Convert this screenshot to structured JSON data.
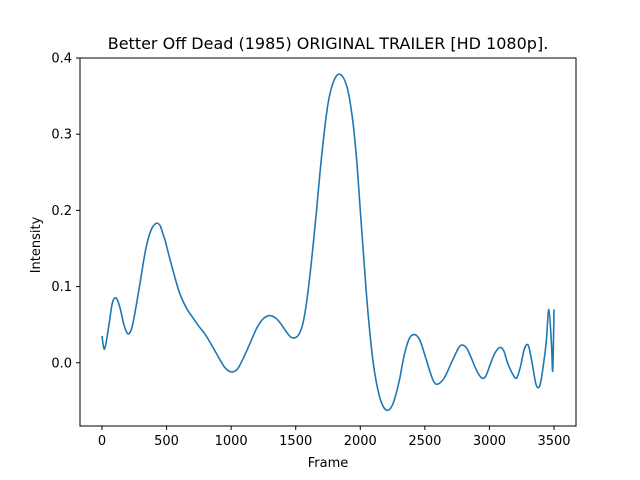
{
  "chart_data": {
    "type": "line",
    "title": "Better Off Dead (1985) ORIGINAL TRAILER [HD 1080p].",
    "xlabel": "Frame",
    "ylabel": "Intensity",
    "xlim": [
      -170,
      3670
    ],
    "ylim": [
      -0.083,
      0.4
    ],
    "grid": false,
    "line_color": "#1f77b4",
    "x_ticks": [
      0,
      500,
      1000,
      1500,
      2000,
      2500,
      3000,
      3500
    ],
    "x_tick_labels": [
      "0",
      "500",
      "1000",
      "1500",
      "2000",
      "2500",
      "3000",
      "3500"
    ],
    "y_ticks": [
      0.0,
      0.1,
      0.2,
      0.3,
      0.4
    ],
    "y_tick_labels": [
      "0.0",
      "0.1",
      "0.2",
      "0.3",
      "0.4"
    ],
    "series": [
      {
        "x": [
          0,
          20,
          50,
          80,
          110,
          140,
          170,
          200,
          230,
          260,
          300,
          340,
          380,
          420,
          450,
          470,
          490,
          520,
          560,
          600,
          650,
          700,
          750,
          800,
          850,
          900,
          950,
          1000,
          1050,
          1100,
          1150,
          1200,
          1250,
          1300,
          1350,
          1390,
          1430,
          1470,
          1520,
          1560,
          1600,
          1650,
          1700,
          1750,
          1800,
          1850,
          1900,
          1940,
          1970,
          2000,
          2030,
          2060,
          2100,
          2150,
          2200,
          2250,
          2300,
          2340,
          2380,
          2420,
          2460,
          2500,
          2540,
          2570,
          2600,
          2650,
          2700,
          2750,
          2780,
          2820,
          2860,
          2900,
          2940,
          2970,
          3000,
          3040,
          3080,
          3110,
          3140,
          3180,
          3210,
          3240,
          3270,
          3300,
          3330,
          3360,
          3390,
          3420,
          3440,
          3460,
          3480,
          3490,
          3500
        ],
        "y": [
          0.035,
          0.018,
          0.045,
          0.078,
          0.085,
          0.072,
          0.05,
          0.038,
          0.045,
          0.07,
          0.11,
          0.15,
          0.174,
          0.183,
          0.18,
          0.17,
          0.16,
          0.14,
          0.115,
          0.092,
          0.073,
          0.06,
          0.048,
          0.037,
          0.023,
          0.008,
          -0.006,
          -0.012,
          -0.008,
          0.008,
          0.027,
          0.046,
          0.058,
          0.062,
          0.058,
          0.05,
          0.04,
          0.033,
          0.036,
          0.055,
          0.1,
          0.18,
          0.27,
          0.34,
          0.372,
          0.378,
          0.36,
          0.32,
          0.27,
          0.2,
          0.13,
          0.065,
          0.0,
          -0.045,
          -0.062,
          -0.055,
          -0.025,
          0.01,
          0.032,
          0.037,
          0.03,
          0.01,
          -0.012,
          -0.025,
          -0.028,
          -0.02,
          -0.002,
          0.016,
          0.023,
          0.02,
          0.006,
          -0.01,
          -0.02,
          -0.018,
          -0.005,
          0.012,
          0.02,
          0.016,
          0.0,
          -0.015,
          -0.02,
          -0.005,
          0.018,
          0.023,
          0.0,
          -0.028,
          -0.03,
          0.0,
          0.028,
          0.07,
          0.025,
          -0.01,
          0.07
        ]
      }
    ]
  }
}
